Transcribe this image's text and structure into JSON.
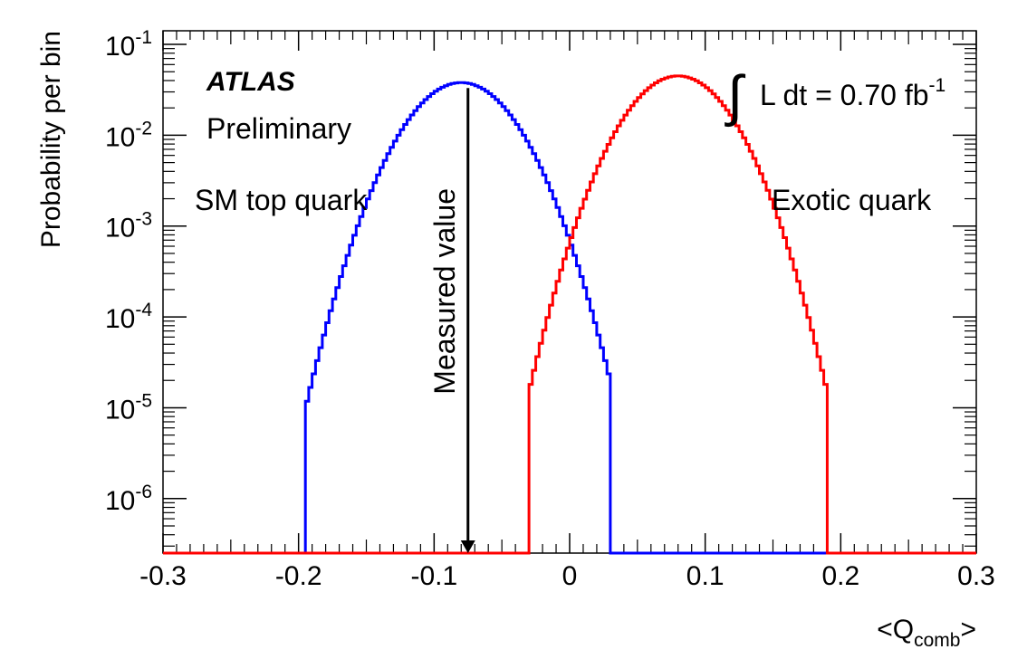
{
  "chart_data": {
    "type": "line",
    "title": "",
    "experiment_label": "ATLAS",
    "status_label": "Preliminary",
    "luminosity_text": "L dt = 0.70 fb",
    "luminosity_exponent": "-1",
    "xlabel_main": "<Q",
    "xlabel_sub": "comb",
    "xlabel_close": ">",
    "ylabel": "Probability per bin",
    "xlim": [
      -0.3,
      0.3
    ],
    "ylim_log10": [
      -6.6,
      -0.85
    ],
    "y_scale": "log",
    "x_ticks": [
      "-0.3",
      "-0.2",
      "-0.1",
      "0",
      "0.1",
      "0.2",
      "0.3"
    ],
    "x_tick_values": [
      -0.3,
      -0.2,
      -0.1,
      0,
      0.1,
      0.2,
      0.3
    ],
    "y_tick_base": "10",
    "y_tick_exponents": [
      "-1",
      "-2",
      "-3",
      "-4",
      "-5",
      "-6"
    ],
    "y_tick_values_log10": [
      -1,
      -2,
      -3,
      -4,
      -5,
      -6
    ],
    "series": [
      {
        "name": "SM top quark",
        "color": "#0000ff",
        "mean": -0.08,
        "sigma": 0.0283,
        "peak": 0.038,
        "support": [
          -0.195,
          0.031
        ]
      },
      {
        "name": "Exotic quark",
        "color": "#ff0000",
        "mean": 0.08,
        "sigma": 0.0275,
        "peak": 0.045,
        "support": [
          -0.03,
          0.19
        ]
      }
    ],
    "measured": {
      "label": "Measured value",
      "x": -0.075,
      "y_top_log10": -1.48
    }
  }
}
